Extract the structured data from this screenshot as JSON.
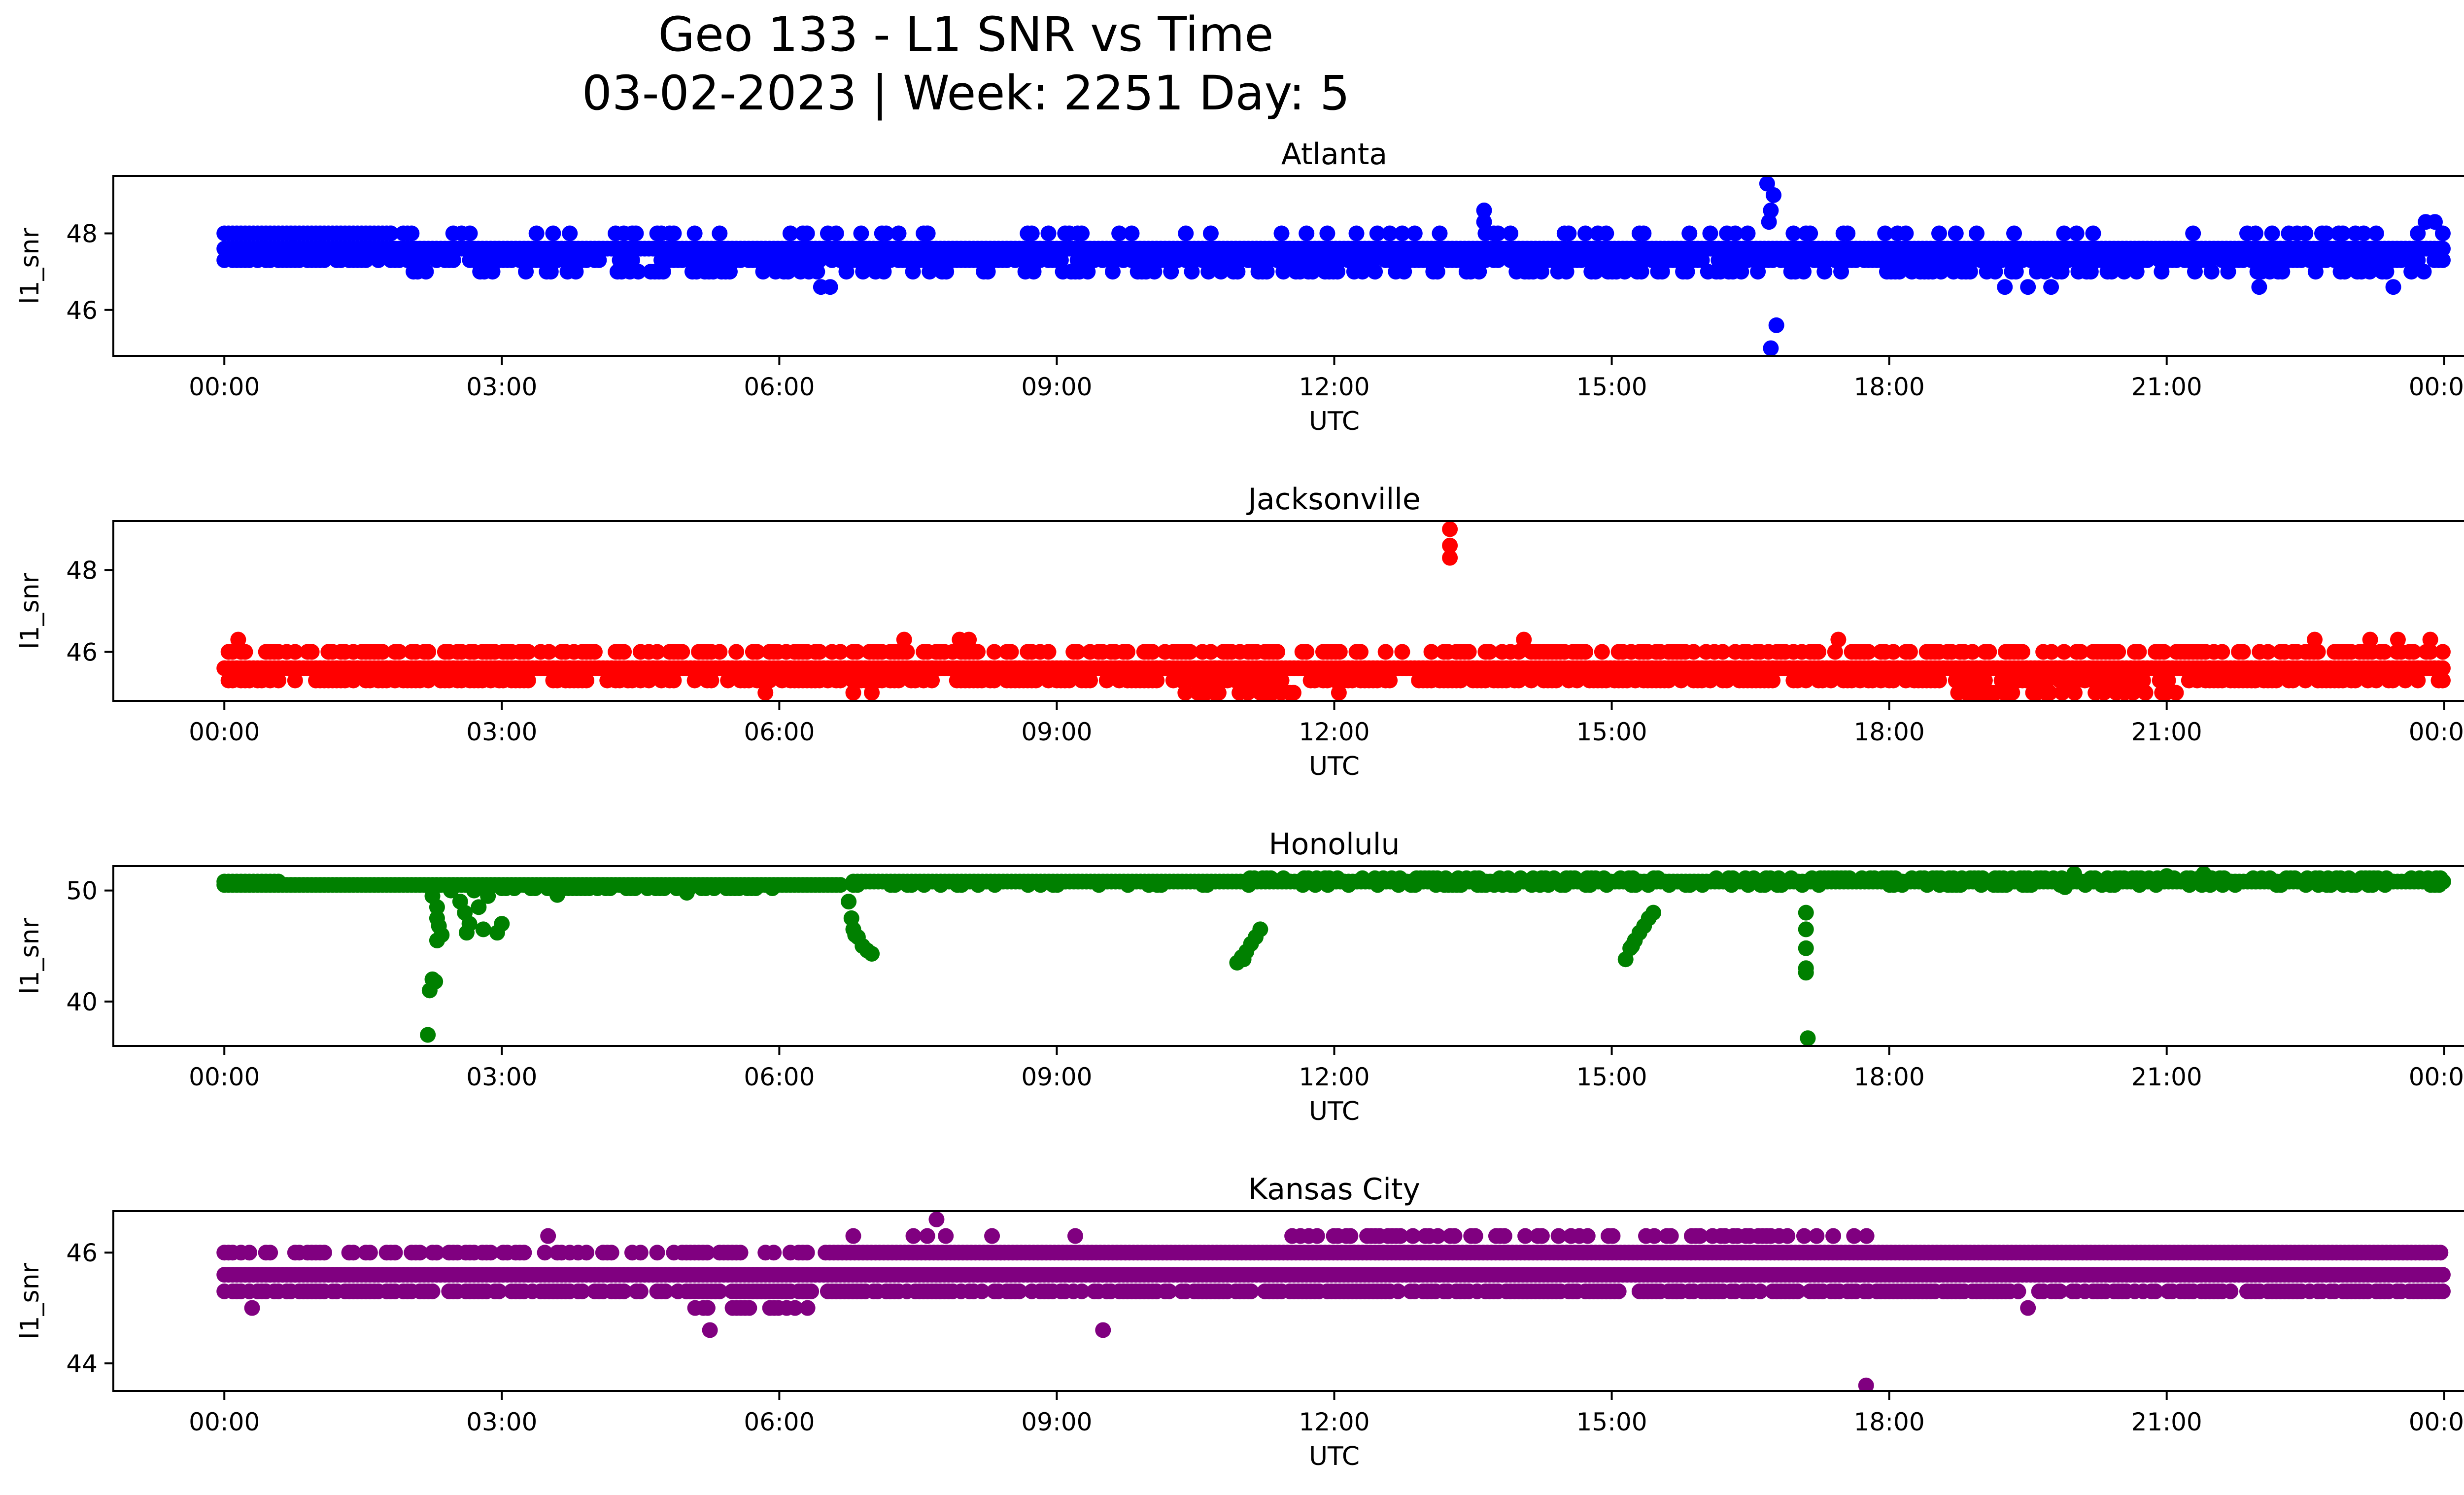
{
  "figure": {
    "title_line1": "Geo 133 - L1 SNR vs Time",
    "title_line2": "03-02-2023 | Week: 2251 Day: 5"
  },
  "x_tick_labels": [
    "00:00",
    "03:00",
    "06:00",
    "09:00",
    "12:00",
    "15:00",
    "18:00",
    "21:00",
    "00:00"
  ],
  "chart_data": [
    {
      "type": "scatter",
      "title": "Atlanta",
      "xlabel": "UTC",
      "ylabel": "l1_snr",
      "color": "#0000ff",
      "xlim_hours": [
        -1.2,
        25.2
      ],
      "ylim": [
        44.8,
        49.5
      ],
      "yticks": [
        46,
        48
      ],
      "xticks_hours": [
        0,
        3,
        6,
        9,
        12,
        15,
        18,
        21,
        24
      ],
      "bands": [
        {
          "y": 48.0,
          "from": 0.0,
          "to": 1.8,
          "density": 1.0
        },
        {
          "y": 48.0,
          "from": 1.8,
          "to": 24.0,
          "density": 0.18
        },
        {
          "y": 47.6,
          "from": 0.0,
          "to": 24.0,
          "density": 1.0
        },
        {
          "y": 47.3,
          "from": 0.0,
          "to": 24.0,
          "density": 0.7
        },
        {
          "y": 47.0,
          "from": 2.0,
          "to": 24.0,
          "density": 0.35
        }
      ],
      "outliers": [
        {
          "x": 13.62,
          "y": 48.6
        },
        {
          "x": 13.62,
          "y": 48.3
        },
        {
          "x": 16.68,
          "y": 49.3
        },
        {
          "x": 16.75,
          "y": 49.0
        },
        {
          "x": 16.72,
          "y": 48.6
        },
        {
          "x": 16.7,
          "y": 48.3
        },
        {
          "x": 16.72,
          "y": 45.0
        },
        {
          "x": 16.78,
          "y": 45.6
        },
        {
          "x": 6.45,
          "y": 46.6
        },
        {
          "x": 6.55,
          "y": 46.6
        },
        {
          "x": 19.25,
          "y": 46.6
        },
        {
          "x": 19.5,
          "y": 46.6
        },
        {
          "x": 19.75,
          "y": 46.6
        },
        {
          "x": 22.0,
          "y": 46.6
        },
        {
          "x": 23.45,
          "y": 46.6
        },
        {
          "x": 23.8,
          "y": 48.3
        },
        {
          "x": 23.9,
          "y": 48.3
        },
        {
          "x": 4.45,
          "y": 48.0
        },
        {
          "x": 7.6,
          "y": 48.0
        }
      ]
    },
    {
      "type": "scatter",
      "title": "Jacksonville",
      "xlabel": "UTC",
      "ylabel": "l1_snr",
      "color": "#ff0000",
      "xlim_hours": [
        -1.2,
        25.2
      ],
      "ylim": [
        44.8,
        49.2
      ],
      "yticks": [
        46,
        48
      ],
      "xticks_hours": [
        0,
        3,
        6,
        9,
        12,
        15,
        18,
        21,
        24
      ],
      "bands": [
        {
          "y": 46.0,
          "from": 0.0,
          "to": 24.0,
          "density": 0.55
        },
        {
          "y": 45.6,
          "from": 0.0,
          "to": 24.0,
          "density": 1.0
        },
        {
          "y": 45.3,
          "from": 0.0,
          "to": 24.0,
          "density": 0.6
        },
        {
          "y": 45.0,
          "from": 10.3,
          "to": 11.6,
          "density": 0.5
        },
        {
          "y": 45.0,
          "from": 18.7,
          "to": 21.0,
          "density": 0.45
        }
      ],
      "outliers": [
        {
          "x": 13.25,
          "y": 49.0
        },
        {
          "x": 13.25,
          "y": 48.6
        },
        {
          "x": 13.25,
          "y": 48.3
        },
        {
          "x": 0.15,
          "y": 46.3
        },
        {
          "x": 7.35,
          "y": 46.3
        },
        {
          "x": 7.95,
          "y": 46.3
        },
        {
          "x": 8.05,
          "y": 46.3
        },
        {
          "x": 14.05,
          "y": 46.3
        },
        {
          "x": 17.45,
          "y": 46.3
        },
        {
          "x": 22.6,
          "y": 46.3
        },
        {
          "x": 23.2,
          "y": 46.3
        },
        {
          "x": 23.5,
          "y": 46.3
        },
        {
          "x": 23.85,
          "y": 46.3
        },
        {
          "x": 5.85,
          "y": 45.0
        },
        {
          "x": 6.8,
          "y": 45.0
        },
        {
          "x": 7.0,
          "y": 45.0
        },
        {
          "x": 12.05,
          "y": 45.0
        },
        {
          "x": 21.1,
          "y": 45.0
        }
      ]
    },
    {
      "type": "scatter",
      "title": "Honolulu",
      "xlabel": "UTC",
      "ylabel": "l1_snr",
      "color": "#008000",
      "xlim_hours": [
        -1.2,
        25.2
      ],
      "ylim": [
        36.0,
        52.2
      ],
      "yticks": [
        40,
        50
      ],
      "xticks_hours": [
        0,
        3,
        6,
        9,
        12,
        15,
        18,
        21,
        24
      ],
      "bands": [
        {
          "y": 50.8,
          "from": 0.0,
          "to": 0.6,
          "density": 1.0
        },
        {
          "y": 50.5,
          "from": 0.0,
          "to": 6.7,
          "density": 1.0
        },
        {
          "y": 50.2,
          "from": 3.0,
          "to": 6.0,
          "density": 0.6
        },
        {
          "y": 50.8,
          "from": 6.8,
          "to": 24.0,
          "density": 1.0
        },
        {
          "y": 51.1,
          "from": 11.0,
          "to": 24.0,
          "density": 0.5
        },
        {
          "y": 50.5,
          "from": 6.8,
          "to": 24.0,
          "density": 0.3
        }
      ],
      "outliers": [
        {
          "x": 2.25,
          "y": 49.5
        },
        {
          "x": 2.3,
          "y": 48.5
        },
        {
          "x": 2.3,
          "y": 47.5
        },
        {
          "x": 2.32,
          "y": 46.8
        },
        {
          "x": 2.35,
          "y": 46.0
        },
        {
          "x": 2.3,
          "y": 45.5
        },
        {
          "x": 2.25,
          "y": 42.0
        },
        {
          "x": 2.22,
          "y": 41.0
        },
        {
          "x": 2.28,
          "y": 41.8
        },
        {
          "x": 2.2,
          "y": 37.0
        },
        {
          "x": 2.45,
          "y": 50.0
        },
        {
          "x": 2.55,
          "y": 49.0
        },
        {
          "x": 2.6,
          "y": 48.0
        },
        {
          "x": 2.65,
          "y": 47.0
        },
        {
          "x": 2.7,
          "y": 50.0
        },
        {
          "x": 2.75,
          "y": 48.5
        },
        {
          "x": 2.8,
          "y": 46.5
        },
        {
          "x": 2.85,
          "y": 49.5
        },
        {
          "x": 2.95,
          "y": 46.2
        },
        {
          "x": 3.0,
          "y": 47.0
        },
        {
          "x": 2.62,
          "y": 46.2
        },
        {
          "x": 6.75,
          "y": 49.0
        },
        {
          "x": 6.78,
          "y": 47.5
        },
        {
          "x": 6.8,
          "y": 46.5
        },
        {
          "x": 6.85,
          "y": 45.8
        },
        {
          "x": 6.9,
          "y": 45.0
        },
        {
          "x": 6.95,
          "y": 44.6
        },
        {
          "x": 7.0,
          "y": 44.3
        },
        {
          "x": 6.82,
          "y": 46.0
        },
        {
          "x": 10.95,
          "y": 43.5
        },
        {
          "x": 11.0,
          "y": 44.0
        },
        {
          "x": 11.05,
          "y": 44.5
        },
        {
          "x": 11.1,
          "y": 45.2
        },
        {
          "x": 11.15,
          "y": 45.8
        },
        {
          "x": 11.2,
          "y": 46.5
        },
        {
          "x": 11.02,
          "y": 43.8
        },
        {
          "x": 15.15,
          "y": 43.8
        },
        {
          "x": 15.2,
          "y": 44.8
        },
        {
          "x": 15.25,
          "y": 45.5
        },
        {
          "x": 15.3,
          "y": 46.2
        },
        {
          "x": 15.35,
          "y": 46.8
        },
        {
          "x": 15.4,
          "y": 47.5
        },
        {
          "x": 15.45,
          "y": 48.0
        },
        {
          "x": 15.22,
          "y": 45.0
        },
        {
          "x": 17.1,
          "y": 48.0
        },
        {
          "x": 17.1,
          "y": 46.5
        },
        {
          "x": 17.1,
          "y": 44.8
        },
        {
          "x": 17.1,
          "y": 43.0
        },
        {
          "x": 17.1,
          "y": 42.6
        },
        {
          "x": 17.12,
          "y": 36.7
        },
        {
          "x": 20.0,
          "y": 51.5
        },
        {
          "x": 21.4,
          "y": 51.5
        },
        {
          "x": 21.0,
          "y": 51.3
        },
        {
          "x": 19.9,
          "y": 50.3
        },
        {
          "x": 5.0,
          "y": 49.8
        },
        {
          "x": 3.6,
          "y": 49.6
        }
      ]
    },
    {
      "type": "scatter",
      "title": "Kansas City",
      "xlabel": "UTC",
      "ylabel": "l1_snr",
      "color": "#800080",
      "xlim_hours": [
        -1.2,
        25.2
      ],
      "ylim": [
        43.5,
        46.75
      ],
      "yticks": [
        44,
        46
      ],
      "xticks_hours": [
        0,
        3,
        6,
        9,
        12,
        15,
        18,
        21,
        24
      ],
      "bands": [
        {
          "y": 46.0,
          "from": 0.0,
          "to": 6.5,
          "density": 0.5
        },
        {
          "y": 46.0,
          "from": 6.5,
          "to": 24.0,
          "density": 1.0
        },
        {
          "y": 45.6,
          "from": 0.0,
          "to": 24.0,
          "density": 1.0
        },
        {
          "y": 45.3,
          "from": 0.0,
          "to": 24.0,
          "density": 0.75
        },
        {
          "y": 46.3,
          "from": 11.5,
          "to": 17.8,
          "density": 0.45
        },
        {
          "y": 45.0,
          "from": 5.0,
          "to": 6.5,
          "density": 0.4
        }
      ],
      "outliers": [
        {
          "x": 7.7,
          "y": 46.6
        },
        {
          "x": 7.45,
          "y": 46.3
        },
        {
          "x": 7.6,
          "y": 46.3
        },
        {
          "x": 7.8,
          "y": 46.3
        },
        {
          "x": 3.5,
          "y": 46.3
        },
        {
          "x": 6.8,
          "y": 46.3
        },
        {
          "x": 8.3,
          "y": 46.3
        },
        {
          "x": 9.2,
          "y": 46.3
        },
        {
          "x": 0.3,
          "y": 45.0
        },
        {
          "x": 5.25,
          "y": 44.6
        },
        {
          "x": 9.5,
          "y": 44.6
        },
        {
          "x": 17.75,
          "y": 43.6
        },
        {
          "x": 19.5,
          "y": 45.0
        },
        {
          "x": 10.75,
          "y": 45.3
        },
        {
          "x": 11.1,
          "y": 45.3
        },
        {
          "x": 15.7,
          "y": 45.3
        }
      ]
    }
  ]
}
